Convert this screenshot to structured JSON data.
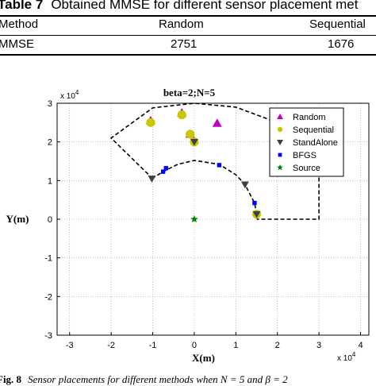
{
  "table": {
    "label": "Table 7",
    "title": "Obtained MMSE for different sensor placement met",
    "header": [
      "Method",
      "Random",
      "Sequential"
    ],
    "row": [
      "MMSE",
      "2751",
      "1676"
    ]
  },
  "chart_data": {
    "type": "scatter",
    "title": "beta=2;N=5",
    "xlabel": "X(m)",
    "ylabel": "Y(m)",
    "x_multiplier": "x 10^4",
    "y_multiplier": "x 10^4",
    "xlim": [
      -3.3,
      4.2
    ],
    "ylim": [
      -3,
      3
    ],
    "xticks": [
      -3,
      -2,
      -1,
      0,
      1,
      2,
      3,
      4
    ],
    "yticks": [
      -3,
      -2,
      -1,
      0,
      1,
      2,
      3
    ],
    "grid": true,
    "legend_position": "top-right",
    "series": [
      {
        "name": "Random",
        "marker": "triangle-up",
        "color": "#c000c0",
        "points": [
          [
            -1.05,
            2.55
          ],
          [
            -0.3,
            2.75
          ],
          [
            0.55,
            2.48
          ],
          [
            -0.1,
            2.2
          ]
        ]
      },
      {
        "name": "Sequential",
        "marker": "circle",
        "color": "#c8c800",
        "points": [
          [
            -1.05,
            2.5
          ],
          [
            -0.3,
            2.7
          ],
          [
            -0.1,
            2.2
          ],
          [
            0.0,
            2.0
          ],
          [
            1.5,
            0.13
          ]
        ]
      },
      {
        "name": "StandAlone",
        "marker": "triangle-down",
        "color": "#404040",
        "points": [
          [
            -1.02,
            1.05
          ],
          [
            0.0,
            2.0
          ],
          [
            1.22,
            0.9
          ],
          [
            1.5,
            0.13
          ]
        ]
      },
      {
        "name": "BFGS",
        "marker": "square",
        "color": "#0000ff",
        "points": [
          [
            -0.75,
            1.23
          ],
          [
            -0.68,
            1.32
          ],
          [
            0.6,
            1.4
          ],
          [
            1.45,
            0.42
          ]
        ]
      },
      {
        "name": "Source",
        "marker": "star",
        "color": "#008000",
        "points": [
          [
            0.0,
            0.0
          ]
        ]
      }
    ],
    "paths": {
      "inner_arc": [
        [
          -1.02,
          1.05
        ],
        [
          -0.75,
          1.23
        ],
        [
          -0.4,
          1.42
        ],
        [
          0.0,
          1.52
        ],
        [
          0.6,
          1.42
        ],
        [
          1.0,
          1.15
        ],
        [
          1.22,
          0.9
        ],
        [
          1.45,
          0.42
        ],
        [
          1.5,
          0.13
        ]
      ],
      "outer_boundary": [
        [
          -1.0,
          1.05
        ],
        [
          -2.0,
          2.1
        ],
        [
          -1.0,
          2.88
        ],
        [
          0.0,
          3.0
        ],
        [
          1.0,
          2.9
        ],
        [
          2.0,
          2.5
        ],
        [
          3.0,
          1.55
        ],
        [
          3.0,
          0.0
        ],
        [
          1.5,
          0.0
        ]
      ]
    }
  },
  "figure_caption": {
    "label": "Fig. 8",
    "text": "Sensor placements for different methods when N = 5 and β = 2"
  }
}
